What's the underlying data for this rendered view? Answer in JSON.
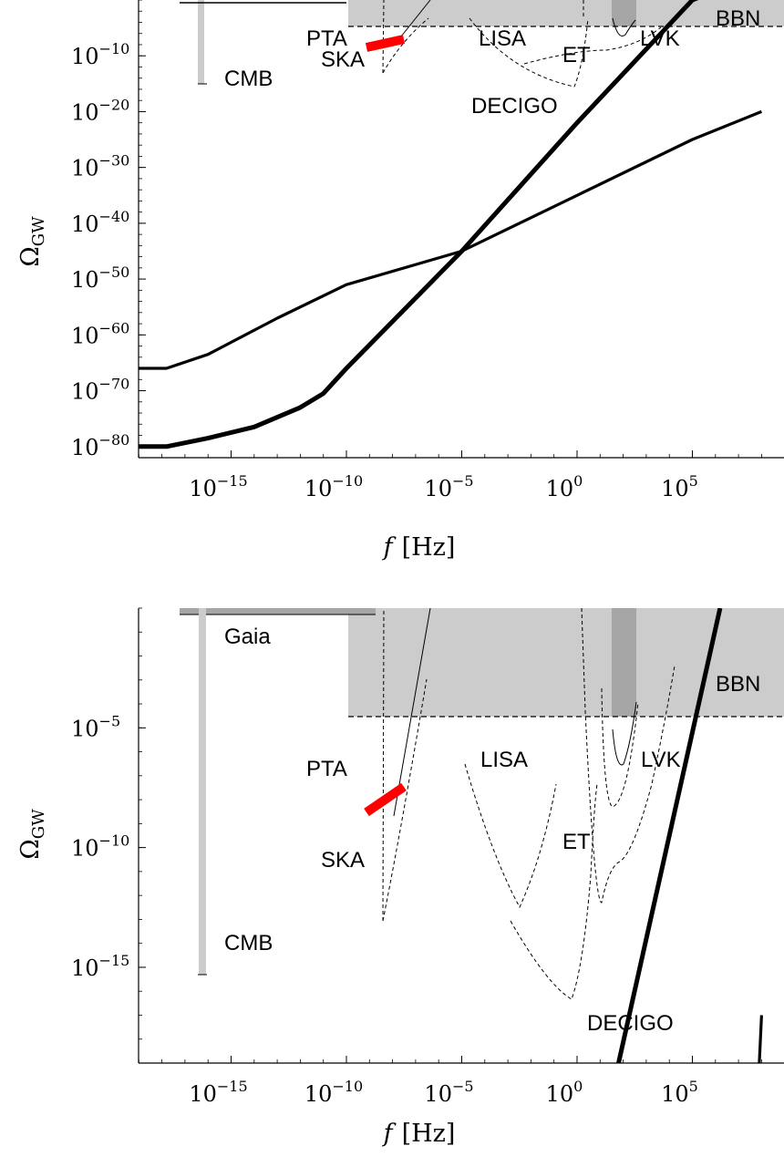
{
  "chart_data": [
    {
      "type": "line",
      "xlabel_var": "f",
      "xlabel_unit": "[Hz]",
      "ylabel_main": "Ω",
      "ylabel_sub": "GW",
      "x_scale": "log10",
      "y_scale": "log10",
      "xlim": [
        -20,
        8
      ],
      "ylim": [
        -82,
        0
      ],
      "x_ticks": [
        {
          "base": "10",
          "exp": "−15",
          "value": -15
        },
        {
          "base": "10",
          "exp": "−10",
          "value": -10
        },
        {
          "base": "10",
          "exp": "−5",
          "value": -5
        },
        {
          "base": "10",
          "exp": "0",
          "value": 0
        },
        {
          "base": "10",
          "exp": "5",
          "value": 5
        }
      ],
      "y_ticks": [
        {
          "base": "10",
          "exp": "−10",
          "value": -10
        },
        {
          "base": "10",
          "exp": "−20",
          "value": -20
        },
        {
          "base": "10",
          "exp": "−30",
          "value": -30
        },
        {
          "base": "10",
          "exp": "−40",
          "value": -40
        },
        {
          "base": "10",
          "exp": "−50",
          "value": -50
        },
        {
          "base": "10",
          "exp": "−60",
          "value": -60
        },
        {
          "base": "10",
          "exp": "−70",
          "value": -70
        },
        {
          "base": "10",
          "exp": "−80",
          "value": -80
        }
      ],
      "annotations": [
        "PTA",
        "SKA",
        "LISA",
        "ET",
        "LVK",
        "BBN",
        "CMB",
        "DECIGO"
      ],
      "series": [
        {
          "style": "thick",
          "x": [
            -20,
            -17.8,
            -16,
            -14,
            -12,
            -11,
            -10,
            -5,
            0,
            5,
            8
          ],
          "y": [
            -80,
            -80,
            -78.5,
            -76.5,
            -73,
            -70.5,
            -66,
            -45,
            -22,
            0,
            5
          ]
        },
        {
          "style": "medium",
          "x": [
            -20,
            -17.8,
            -16,
            -13,
            -10,
            -5,
            0,
            5,
            8
          ],
          "y": [
            -66,
            -66,
            -63.5,
            -57,
            -51,
            -45,
            -35,
            -25,
            -20
          ]
        }
      ],
      "constraints": {
        "bbn_level_exp": -6,
        "cmb_x": -17,
        "cmb_range_exp": [
          -15,
          -1
        ]
      }
    },
    {
      "type": "line",
      "xlabel_var": "f",
      "xlabel_unit": "[Hz]",
      "ylabel_main": "Ω",
      "ylabel_sub": "GW",
      "x_scale": "log10",
      "y_scale": "log10",
      "xlim": [
        -20,
        8
      ],
      "ylim": [
        -19,
        0
      ],
      "x_ticks": [
        {
          "base": "10",
          "exp": "−15",
          "value": -15
        },
        {
          "base": "10",
          "exp": "−10",
          "value": -10
        },
        {
          "base": "10",
          "exp": "−5",
          "value": -5
        },
        {
          "base": "10",
          "exp": "0",
          "value": 0
        },
        {
          "base": "10",
          "exp": "5",
          "value": 5
        }
      ],
      "y_ticks": [
        {
          "base": "10",
          "exp": "−5",
          "value": -5
        },
        {
          "base": "10",
          "exp": "−10",
          "value": -10
        },
        {
          "base": "10",
          "exp": "−15",
          "value": -15
        }
      ],
      "annotations": [
        "Gaia",
        "BBN",
        "PTA",
        "LISA",
        "LVK",
        "ET",
        "SKA",
        "CMB",
        "DECIGO"
      ],
      "series": [
        {
          "style": "thick",
          "x": [
            1.8,
            6.2
          ],
          "y": [
            -19,
            0
          ]
        },
        {
          "style": "medium",
          "x": [
            7.9,
            8
          ],
          "y": [
            -19,
            -17
          ]
        }
      ],
      "constraints": {
        "bbn_level_exp": -5.4,
        "cmb_x": -17,
        "cmb_range_exp": [
          -15.3,
          0
        ]
      }
    }
  ]
}
